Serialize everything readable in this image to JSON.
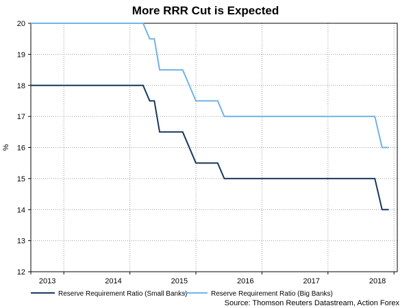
{
  "chart_data": {
    "type": "line",
    "title": "More RRR Cut is Expected",
    "ylabel": "%",
    "xlabel": "",
    "ylim": [
      12,
      20
    ],
    "yticks": [
      12,
      13,
      14,
      15,
      16,
      17,
      18,
      19,
      20
    ],
    "xlim": [
      2012.75,
      2018.3
    ],
    "xticks": [
      {
        "value": 2013.0,
        "label": "2013"
      },
      {
        "value": 2014.0,
        "label": "2014"
      },
      {
        "value": 2015.0,
        "label": "2015"
      },
      {
        "value": 2016.0,
        "label": "2016"
      },
      {
        "value": 2017.0,
        "label": "2017"
      },
      {
        "value": 2018.0,
        "label": "2018"
      }
    ],
    "x_gridlines": [
      2012.75,
      2013.25,
      2014.25,
      2015.25,
      2016.25,
      2017.25,
      2018.25
    ],
    "grid": true,
    "series": [
      {
        "name": "Reserve Requirement Ratio (Small Banks)",
        "color": "#17375e",
        "points": [
          [
            2012.75,
            18.0
          ],
          [
            2014.45,
            18.0
          ],
          [
            2014.55,
            17.5
          ],
          [
            2014.62,
            17.5
          ],
          [
            2014.7,
            16.5
          ],
          [
            2015.05,
            16.5
          ],
          [
            2015.25,
            15.5
          ],
          [
            2015.58,
            15.5
          ],
          [
            2015.68,
            15.0
          ],
          [
            2017.96,
            15.0
          ],
          [
            2018.07,
            14.0
          ],
          [
            2018.17,
            14.0
          ]
        ]
      },
      {
        "name": "Reserve Requirement Ratio (Big Banks)",
        "color": "#6fb3e8",
        "points": [
          [
            2012.75,
            20.0
          ],
          [
            2014.45,
            20.0
          ],
          [
            2014.55,
            19.5
          ],
          [
            2014.62,
            19.5
          ],
          [
            2014.7,
            18.5
          ],
          [
            2015.05,
            18.5
          ],
          [
            2015.25,
            17.5
          ],
          [
            2015.58,
            17.5
          ],
          [
            2015.68,
            17.0
          ],
          [
            2017.96,
            17.0
          ],
          [
            2018.07,
            16.0
          ],
          [
            2018.17,
            16.0
          ]
        ]
      }
    ],
    "legend_position": "bottom",
    "source": "Source: Thomson Reuters Datastream, Action Forex"
  }
}
